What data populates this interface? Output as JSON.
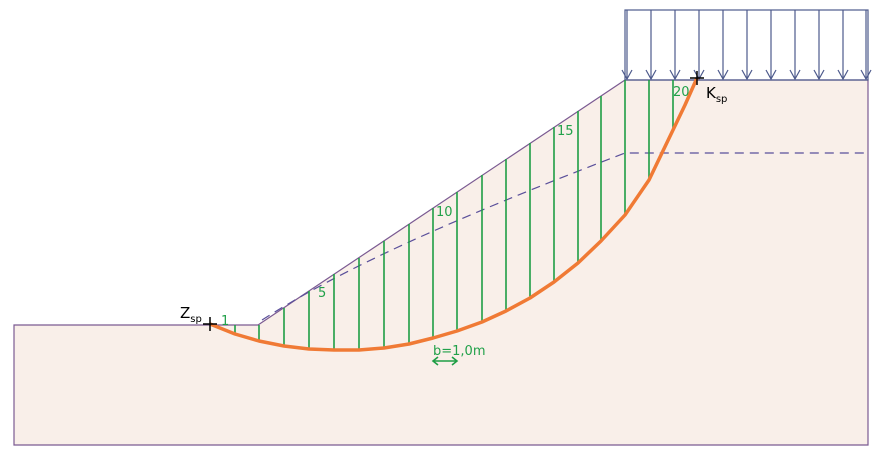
{
  "points": {
    "start": {
      "label": "Z",
      "subscript": "sp"
    },
    "end": {
      "label": "K",
      "subscript": "sp"
    }
  },
  "slice_labels": [
    "1",
    "5",
    "10",
    "15",
    "20"
  ],
  "slice_width": "b=1,0m"
}
